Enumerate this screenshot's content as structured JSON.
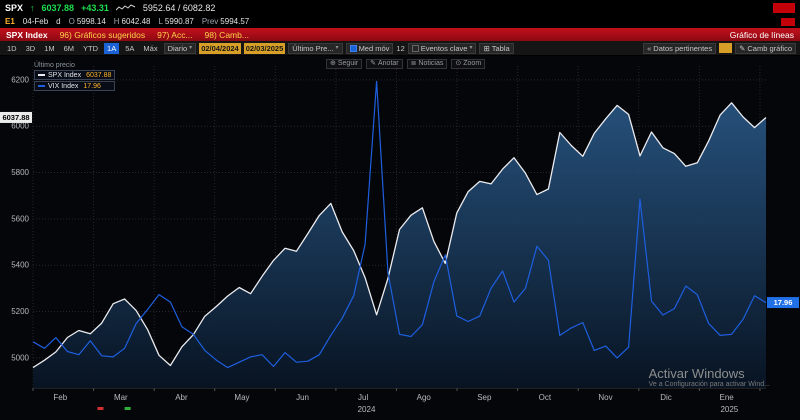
{
  "top_bar": {
    "ticker": "SPX",
    "arrow": "↑",
    "price": "6037.88",
    "change": "+43.31",
    "range": "5952.64 / 6082.82",
    "session": "E1",
    "date": "04-Feb",
    "freq": "d",
    "ohlc": [
      {
        "label": "O",
        "value": "5998.14"
      },
      {
        "label": "H",
        "value": "6042.48"
      },
      {
        "label": "L",
        "value": "5990.87"
      },
      {
        "label": "Prev",
        "value": "5994.57"
      }
    ]
  },
  "function_bar": {
    "security": "SPX Index",
    "menu_items": [
      "96) Gráficos sugeridos",
      "97) Acc...",
      "98) Camb..."
    ],
    "title": "Gráfico de líneas"
  },
  "toolbar": {
    "periods": [
      "1D",
      "3D",
      "1M",
      "6M",
      "YTD",
      "1A",
      "5A",
      "Máx"
    ],
    "selected": "1A",
    "frequency": "Diario",
    "caret": "▾",
    "date_from": "02/04/2024",
    "date_to": "02/03/2025",
    "price_type": "Último Pre...",
    "mov_avg": "Med móv",
    "mov_avg_periods": "12",
    "key_events": "Eventos clave",
    "table_icon": "⊞",
    "table": "Tabla",
    "chevron": "«",
    "related_data": "Datos pertinentes",
    "change_chart_icon": "✎",
    "change_chart": "Camb gráfico"
  },
  "chart": {
    "legend_title": "Último precio",
    "series_labels": [
      {
        "name": "SPX Index",
        "value": "6037.88"
      },
      {
        "name": "VIX Index",
        "value": "17.96"
      }
    ],
    "buttons": [
      {
        "icon": "⊕",
        "label": "Seguir"
      },
      {
        "icon": "✎",
        "label": "Anotar"
      },
      {
        "icon": "≣",
        "label": "Noticias"
      },
      {
        "icon": "⊙",
        "label": "Zoom"
      }
    ],
    "left_tag": "6037.88",
    "right_tag": "17.96",
    "watermark": "Activar Windows",
    "watermark_sub": "Ve a Configuración para activar Wind..."
  },
  "chart_data": {
    "type": "line",
    "title": "SPX Index vs VIX Index — Gráfico de líneas, 1A diario (02/04/2024 - 02/03/2025)",
    "x_months": [
      "Feb",
      "Mar",
      "Abr",
      "May",
      "Jun",
      "Jul",
      "Ago",
      "Sep",
      "Oct",
      "Nov",
      "Dic",
      "Ene"
    ],
    "years": [
      {
        "label": "2024",
        "pos": 0.455
      },
      {
        "label": "2025",
        "pos": 0.95
      }
    ],
    "y_ticks": [
      5000,
      5200,
      5400,
      5600,
      5800,
      6000,
      6200
    ],
    "ylim_left": [
      4870,
      6260
    ],
    "ylim_right": [
      10,
      40
    ],
    "grid": true,
    "legend_position": "top-left",
    "markers": [
      {
        "color": "#d03030",
        "pos": 0.088
      },
      {
        "color": "#2fae3a",
        "pos": 0.125
      }
    ],
    "series": [
      {
        "name": "SPX Index",
        "axis": "left",
        "color": "#ececf0",
        "last": 6037.88,
        "values": [
          4958,
          4990,
          5026,
          5088,
          5118,
          5104,
          5150,
          5234,
          5254,
          5205,
          5123,
          5011,
          4967,
          5048,
          5100,
          5180,
          5222,
          5267,
          5304,
          5277,
          5352,
          5421,
          5473,
          5460,
          5537,
          5615,
          5667,
          5544,
          5463,
          5346,
          5186,
          5344,
          5554,
          5616,
          5648,
          5503,
          5408,
          5626,
          5718,
          5762,
          5751,
          5815,
          5864,
          5797,
          5705,
          5729,
          5973,
          5917,
          5870,
          5969,
          6032,
          6090,
          6051,
          5872,
          5975,
          5907,
          5882,
          5827,
          5842,
          5937,
          6049,
          6101,
          6040,
          5994,
          6037.88
        ]
      },
      {
        "name": "VIX Index",
        "axis": "right",
        "color": "#1e5fe0",
        "last": 17.96,
        "values": [
          14.3,
          13.7,
          14.7,
          13.4,
          13.1,
          14.4,
          13.0,
          12.9,
          13.7,
          16.0,
          17.3,
          18.7,
          18.0,
          15.7,
          15.0,
          13.5,
          12.6,
          11.9,
          12.4,
          12.9,
          13.1,
          12.0,
          13.3,
          12.4,
          12.5,
          13.1,
          14.9,
          16.5,
          18.6,
          23.4,
          38.57,
          20.7,
          15.0,
          14.8,
          15.9,
          19.9,
          22.4,
          16.7,
          16.2,
          16.7,
          19.3,
          20.9,
          18.0,
          19.3,
          23.2,
          21.9,
          14.9,
          15.6,
          16.1,
          13.5,
          13.9,
          12.8,
          13.8,
          27.6,
          18.1,
          16.8,
          17.4,
          19.5,
          18.7,
          16.0,
          14.9,
          15.0,
          16.4,
          18.6,
          17.96
        ]
      }
    ]
  }
}
